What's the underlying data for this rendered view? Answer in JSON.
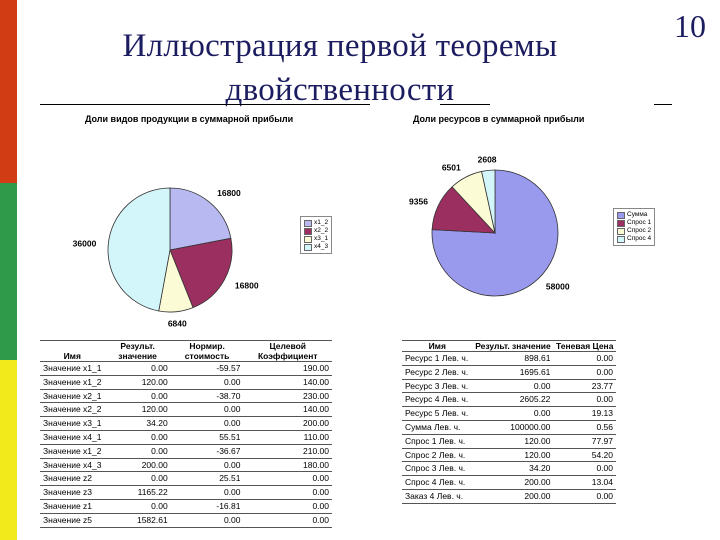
{
  "page": {
    "title_line1": "Иллюстрация первой теоремы",
    "title_line2": "двойственности",
    "page_number": "10",
    "colors": {
      "left_bar": [
        "#d23c14",
        "#2f9a4a",
        "#f2ea1a"
      ],
      "title": "#1c1c60"
    }
  },
  "chart_data": [
    {
      "type": "pie",
      "title": "Доли видов продукции в суммарной прибыли",
      "labels": [
        "x1_2",
        "x2_2",
        "x3_1",
        "x4_3"
      ],
      "values": [
        16800,
        16800,
        6840,
        36000
      ],
      "data_labels": [
        "16800",
        "16800",
        "6840",
        "36000"
      ],
      "colors": [
        "#b9b9f2",
        "#9b2f5f",
        "#fbfbd6",
        "#d3f6fb"
      ],
      "legend": "right"
    },
    {
      "type": "pie",
      "title": "Доли ресурсов в суммарной прибыли",
      "labels": [
        "Сумма",
        "Спрос 1",
        "Спрос 2",
        "Спрос 4"
      ],
      "values": [
        58000,
        9356,
        6501,
        2608
      ],
      "data_labels": [
        "58000",
        "9356",
        "6501",
        "2608"
      ],
      "colors": [
        "#9999ee",
        "#9b2f5f",
        "#fbfbd6",
        "#d3f6fb"
      ],
      "legend": "right"
    }
  ],
  "table_left": {
    "headers": [
      "Имя",
      "Результ. значение",
      "Нормир. стоимость",
      "Целевой Коэффициент"
    ],
    "rows": [
      [
        "Значение x1_1",
        "0.00",
        "-59.57",
        "190.00"
      ],
      [
        "Значение x1_2",
        "120.00",
        "0.00",
        "140.00"
      ],
      [
        "Значение x2_1",
        "0.00",
        "-38.70",
        "230.00"
      ],
      [
        "Значение x2_2",
        "120.00",
        "0.00",
        "140.00"
      ],
      [
        "Значение x3_1",
        "34.20",
        "0.00",
        "200.00"
      ],
      [
        "Значение x4_1",
        "0.00",
        "55.51",
        "110.00"
      ],
      [
        "Значение x1_2",
        "0.00",
        "-36.67",
        "210.00"
      ],
      [
        "Значение x4_3",
        "200.00",
        "0.00",
        "180.00"
      ],
      [
        "Значение z2",
        "0.00",
        "25.51",
        "0.00"
      ],
      [
        "Значение z3",
        "1165.22",
        "0.00",
        "0.00"
      ],
      [
        "Значение z1",
        "0.00",
        "-16.81",
        "0.00"
      ],
      [
        "Значение z5",
        "1582.61",
        "0.00",
        "0.00"
      ]
    ]
  },
  "table_right": {
    "headers": [
      "Имя",
      "Результ. значение",
      "Теневая Цена"
    ],
    "rows": [
      [
        "Ресурс 1 Лев. ч.",
        "898.61",
        "0.00"
      ],
      [
        "Ресурс 2 Лев. ч.",
        "1695.61",
        "0.00"
      ],
      [
        "Ресурс 3 Лев. ч.",
        "0.00",
        "23.77"
      ],
      [
        "Ресурс 4 Лев. ч.",
        "2605.22",
        "0.00"
      ],
      [
        "Ресурс 5 Лев. ч.",
        "0.00",
        "19.13"
      ],
      [
        "Сумма Лев. ч.",
        "100000.00",
        "0.56"
      ],
      [
        "Спрос 1 Лев. ч.",
        "120.00",
        "77.97"
      ],
      [
        "Спрос 2 Лев. ч.",
        "120.00",
        "54.20"
      ],
      [
        "Спрос 3 Лев. ч.",
        "34.20",
        "0.00"
      ],
      [
        "Спрос 4 Лев. ч.",
        "200.00",
        "13.04"
      ],
      [
        "Заказ 4 Лев. ч.",
        "200.00",
        "0.00"
      ]
    ]
  }
}
